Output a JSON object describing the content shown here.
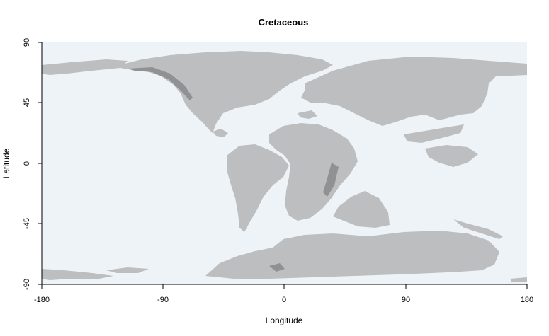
{
  "chart_data": {
    "type": "map",
    "title": "Cretaceous",
    "xlabel": "Longitude",
    "ylabel": "Latitude",
    "xlim": [
      -180,
      180
    ],
    "ylim": [
      -90,
      90
    ],
    "x_ticks": [
      "-180",
      "-90",
      "0",
      "90",
      "180"
    ],
    "y_ticks": [
      "90",
      "45",
      "0",
      "-45",
      "-90"
    ],
    "grid": false,
    "colors": {
      "ocean": "#eef3f7",
      "land": "#bcbebf",
      "land_shadow": "#8f9192",
      "axis": "#000000"
    }
  }
}
